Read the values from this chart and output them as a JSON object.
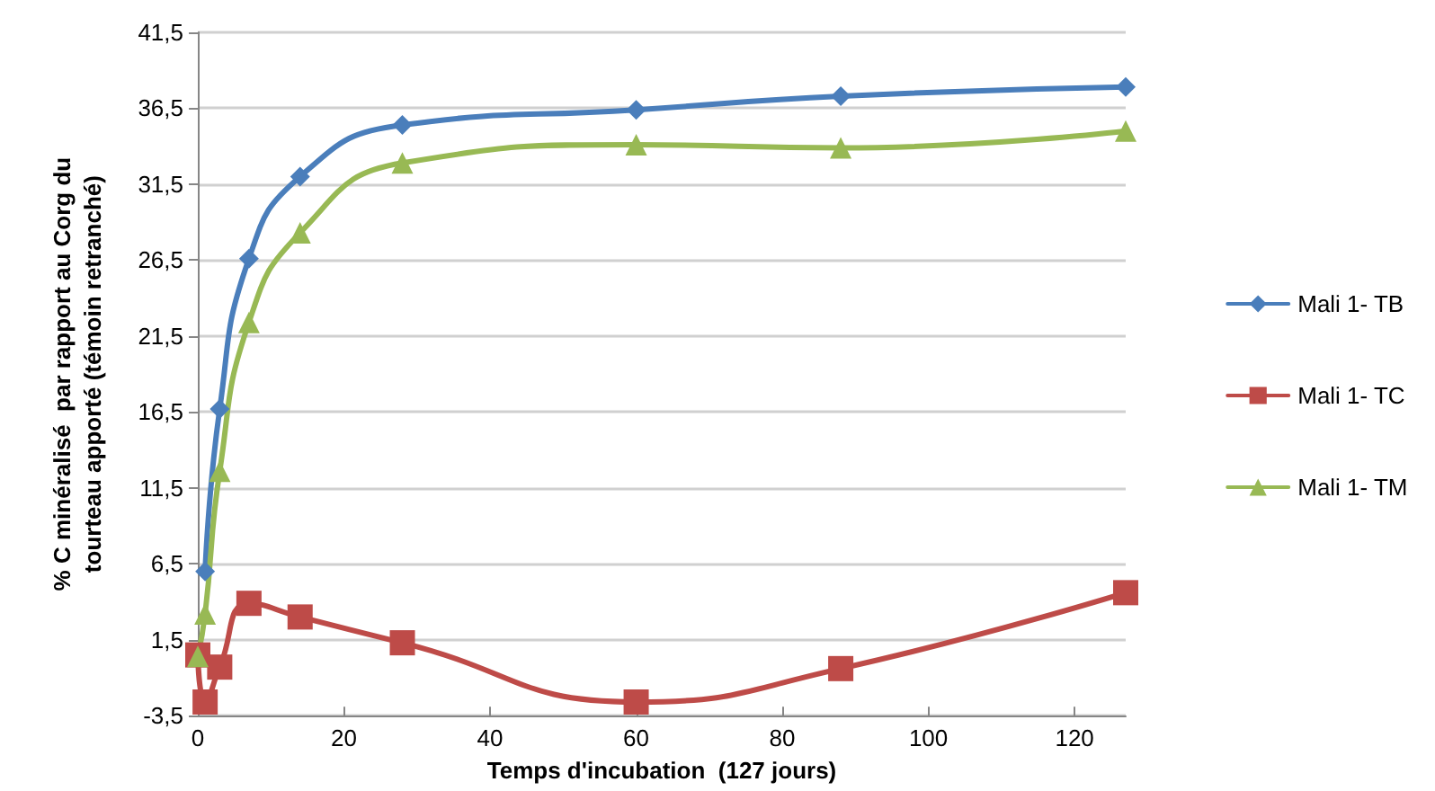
{
  "chart_data": {
    "type": "line",
    "xlabel": "Temps d'incubation  (127 jours)",
    "ylabel": "% C minéralisé  par rapport au Corg du\ntourteau apporté (témoin retranché)",
    "x": [
      0,
      1,
      3,
      7,
      14,
      28,
      60,
      88,
      127
    ],
    "series": [
      {
        "name": "Mali 1- TB",
        "color": "#4a7ebb",
        "marker": "diamond",
        "values": [
          null,
          6.0,
          16.7,
          26.6,
          32.0,
          35.4,
          36.4,
          37.3,
          37.9
        ]
      },
      {
        "name": "Mali 1- TC",
        "color": "#be4b48",
        "marker": "square",
        "values": [
          0.5,
          -2.6,
          -0.3,
          3.9,
          3.0,
          1.3,
          -2.6,
          -0.4,
          4.6
        ]
      },
      {
        "name": "Mali 1- TM",
        "color": "#98b954",
        "marker": "triangle",
        "values": [
          0.4,
          3.2,
          12.6,
          22.4,
          28.3,
          32.9,
          34.1,
          33.9,
          35.0
        ]
      }
    ],
    "xlim": [
      0,
      127
    ],
    "xticks": [
      0,
      20,
      40,
      60,
      80,
      100,
      120
    ],
    "ylim": [
      -3.5,
      41.5
    ],
    "yticks": [
      {
        "value": -3.5,
        "label": "-3,5"
      },
      {
        "value": 1.5,
        "label": "1,5"
      },
      {
        "value": 6.5,
        "label": "6,5"
      },
      {
        "value": 11.5,
        "label": "11,5"
      },
      {
        "value": 16.5,
        "label": "16,5"
      },
      {
        "value": 21.5,
        "label": "21,5"
      },
      {
        "value": 26.5,
        "label": "26,5"
      },
      {
        "value": 31.5,
        "label": "31,5"
      },
      {
        "value": 36.5,
        "label": "36,5"
      },
      {
        "value": 41.5,
        "label": "41,5"
      }
    ],
    "grid": "y",
    "legend": "right",
    "line_style": "solid"
  }
}
